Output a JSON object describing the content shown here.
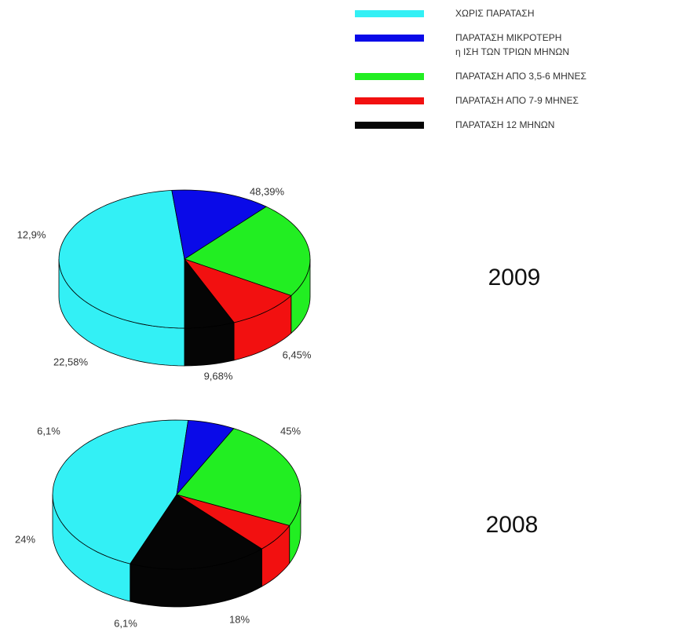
{
  "legend": [
    {
      "name": "ΧΩΡΙΣ ΠΑΡΑΤΑΣΗ",
      "color": "#33f0f5"
    },
    {
      "name": "ΠΑΡΑΤΑΣΗ ΜΙΚΡΟΤΕΡΗ\nη ΙΣΗ ΤΩΝ ΤΡΙΩΝ ΜΗΝΩΝ",
      "color": "#0a0ae8"
    },
    {
      "name": "ΠΑΡΑΤΑΣΗ ΑΠΟ 3,5-6 ΜΗΝΕΣ",
      "color": "#22ee22"
    },
    {
      "name": "ΠΑΡΑΤΑΣΗ ΑΠΟ 7-9 ΜΗΝΕΣ",
      "color": "#f21010"
    },
    {
      "name": "ΠΑΡΑΤΑΣΗ 12 ΜΗΝΩΝ",
      "color": "#050505"
    }
  ],
  "chart_data": [
    {
      "type": "pie",
      "title": "2009",
      "values": [
        48.39,
        12.9,
        22.58,
        9.68,
        6.45
      ],
      "value_labels": [
        "48,39%",
        "12,9%",
        "22,58%",
        "9,68%",
        "6,45%"
      ]
    },
    {
      "type": "pie",
      "title": "2008",
      "values": [
        45,
        6.1,
        24,
        6.1,
        18
      ],
      "value_labels": [
        "45%",
        "6,1%",
        "24%",
        "6,1%",
        "18%"
      ]
    }
  ]
}
